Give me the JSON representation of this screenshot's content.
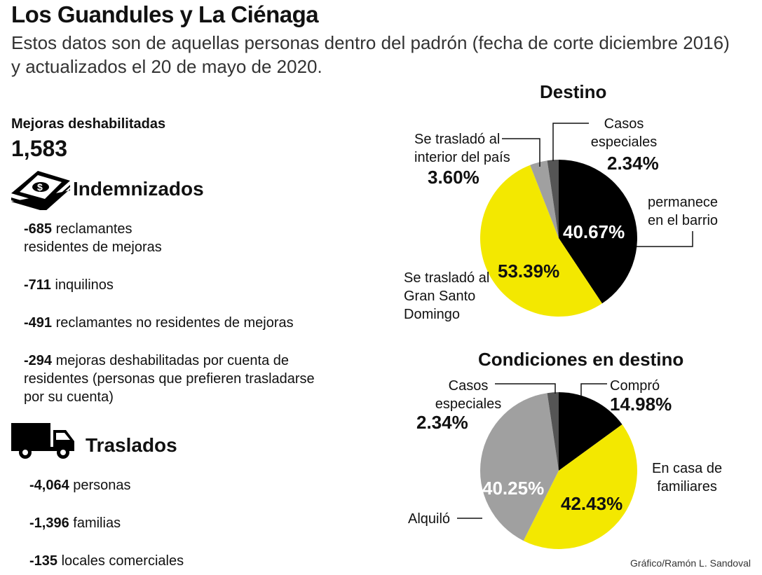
{
  "title": "Los Guandules y La Ciénaga",
  "subtitle_line1": "Estos datos son de aquellas personas dentro del padrón (fecha de corte diciembre 2016)",
  "subtitle_line2": "y actualizados el 20 de mayo de 2020.",
  "mejoras": {
    "label": "Mejoras deshabilitadas",
    "value": "1,583"
  },
  "indemnizados": {
    "heading": "Indemnizados",
    "icon": "money-stack-icon",
    "items": [
      {
        "num": "-685",
        "text": " reclamantes",
        "text2": "residentes de mejoras"
      },
      {
        "num": "-711",
        "text": " inquilinos"
      },
      {
        "num": "-491",
        "text": " reclamantes no residentes de mejoras"
      },
      {
        "num": "-294",
        "text": " mejoras deshabilitadas por cuenta de",
        "text2": "residentes (personas que prefieren trasladarse",
        "text3": "por su cuenta)"
      }
    ]
  },
  "traslados": {
    "heading": "Traslados",
    "icon": "truck-icon",
    "items": [
      {
        "num": "-4,064",
        "text": " personas"
      },
      {
        "num": "-1,396",
        "text": " familias"
      },
      {
        "num": "-135",
        "text": " locales comerciales"
      }
    ]
  },
  "credit": "Gráfico/Ramón L. Sandoval",
  "chart_data": [
    {
      "type": "pie",
      "title": "Destino",
      "start": "12 o'clock clockwise",
      "slices": [
        {
          "label1": "permanece",
          "label2": "en el barrio",
          "value": 40.67,
          "text": "40.67%",
          "color": "#000000"
        },
        {
          "label1": "Se trasladó al",
          "label2": "Gran Santo",
          "label3": "Domingo",
          "value": 53.39,
          "text": "53.39%",
          "color": "#f3e800"
        },
        {
          "label1": "Se trasladó al",
          "label2": "interior del país",
          "value": 3.6,
          "text": "3.60%",
          "color": "#a0a0a0"
        },
        {
          "label1": "Casos",
          "label2": "especiales",
          "value": 2.34,
          "text": "2.34%",
          "color": "#555555"
        }
      ]
    },
    {
      "type": "pie",
      "title": "Condiciones en destino",
      "start": "12 o'clock clockwise",
      "slices": [
        {
          "label1": "Compró",
          "value": 14.98,
          "text": "14.98%",
          "color": "#000000"
        },
        {
          "label1": "En casa de",
          "label2": "familiares",
          "value": 42.43,
          "text": "42.43%",
          "color": "#f3e800"
        },
        {
          "label1": "Alquiló",
          "value": 40.25,
          "text": "40.25%",
          "color": "#a0a0a0"
        },
        {
          "label1": "Casos",
          "label2": "especiales",
          "value": 2.34,
          "text": "2.34%",
          "color": "#555555"
        }
      ]
    }
  ]
}
